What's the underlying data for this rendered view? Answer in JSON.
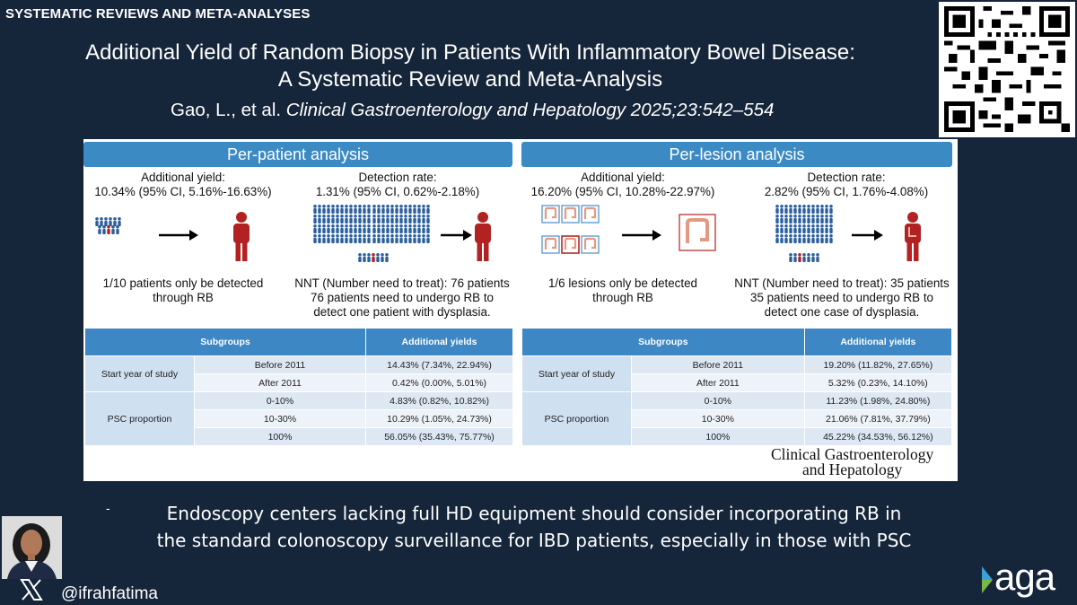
{
  "header": {
    "tag": "SYSTEMATIC REVIEWS AND META-ANALYSES",
    "title_line1": "Additional Yield of Random Biopsy in Patients With Inflammatory Bowel Disease:",
    "title_line2": "A Systematic Review and Meta-Analysis",
    "authors": "Gao, L., et al. ",
    "journal_ref": "Clinical Gastroenterology and Hepatology 2025;23:542–554"
  },
  "per_patient": {
    "heading": "Per-patient analysis",
    "yield_label": "Additional yield:",
    "yield_value": "10.34% (95% CI, 5.16%-16.63%)",
    "detection_label": "Detection rate:",
    "detection_value": "1.31% (95% CI, 0.62%-2.18%)",
    "left_caption_1": "1/10 patients only be detected",
    "left_caption_2": "through RB",
    "nnt_1": "NNT (Number need to treat): 76 patients",
    "nnt_2": "76 patients need to undergo RB to",
    "nnt_3": "detect one patient with dysplasia.",
    "table": {
      "col1": "Subgroups",
      "col2": "Additional yields",
      "group1": "Start year of study",
      "group2": "PSC proportion",
      "rows": [
        {
          "sub": "Before 2011",
          "val": "14.43% (7.34%, 22.94%)"
        },
        {
          "sub": "After 2011",
          "val": "0.42% (0.00%, 5.01%)"
        },
        {
          "sub": "0-10%",
          "val": "4.83% (0.82%, 10.82%)"
        },
        {
          "sub": "10-30%",
          "val": "10.29% (1.05%, 24.73%)"
        },
        {
          "sub": "100%",
          "val": "56.05% (35.43%, 75.77%)"
        }
      ]
    }
  },
  "per_lesion": {
    "heading": "Per-lesion analysis",
    "yield_label": "Additional yield:",
    "yield_value": "16.20% (95% CI, 10.28%-22.97%)",
    "detection_label": "Detection rate:",
    "detection_value": "2.82% (95% CI, 1.76%-4.08%)",
    "left_caption_1": "1/6 lesions only be detected",
    "left_caption_2": "through RB",
    "nnt_1": "NNT (Number need to treat): 35 patients",
    "nnt_2": "35 patients need to undergo RB to",
    "nnt_3": "detect one case of dysplasia.",
    "table": {
      "col1": "Subgroups",
      "col2": "Additional yields",
      "group1": "Start year of study",
      "group2": "PSC proportion",
      "rows": [
        {
          "sub": "Before 2011",
          "val": "19.20% (11.82%, 27.65%)"
        },
        {
          "sub": "After 2011",
          "val": "5.32% (0.23%, 14.10%)"
        },
        {
          "sub": "0-10%",
          "val": "11.23% (1.98%, 24.80%)"
        },
        {
          "sub": "10-30%",
          "val": "21.06% (7.81%, 37.79%)"
        },
        {
          "sub": "100%",
          "val": "45.22% (34.53%, 56.12%)"
        }
      ]
    }
  },
  "journal_logo": {
    "line1": "Clinical Gastroenterology",
    "line2": "and Hepatology"
  },
  "takeaway": {
    "bullet": "-",
    "line1": "Endoscopy centers lacking full HD equipment should consider incorporating RB in",
    "line2": "the standard colonoscopy surveillance for IBD patients, especially in those with PSC"
  },
  "footer": {
    "handle": "@ifrahfatima",
    "brand": "aga",
    "x_icon": "x-logo-icon"
  },
  "colors": {
    "background": "#15253a",
    "accent_blue": "#3b8ac4",
    "figure_red": "#b22222",
    "crowd_blue": "#2b5f9e"
  }
}
